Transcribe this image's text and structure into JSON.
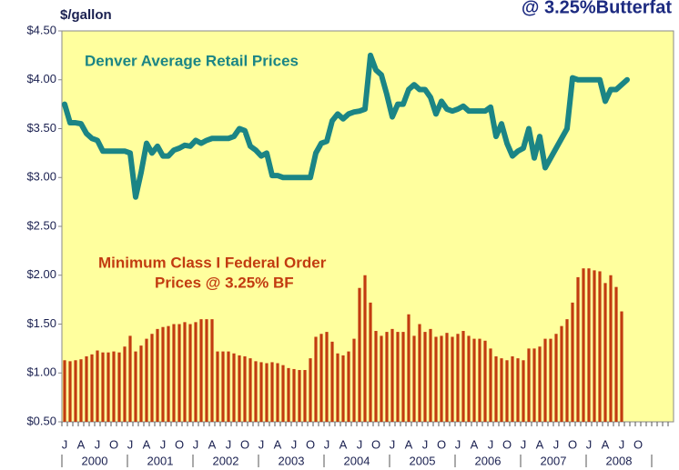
{
  "chart_data": {
    "type": "combo",
    "title": "@ 3.25%Butterfat",
    "y_axis_label": "$/gallon",
    "annotations": [
      "Denver Average Retail Prices",
      "Minimum Class I Federal Order",
      "Prices @ 3.25% BF"
    ],
    "categories": [
      "J",
      null,
      null,
      "A",
      null,
      null,
      "J",
      null,
      null,
      "O",
      null,
      null,
      "J",
      null,
      null,
      "A",
      null,
      null,
      "J",
      null,
      null,
      "O",
      null,
      null,
      "J",
      null,
      null,
      "A",
      null,
      null,
      "J",
      null,
      null,
      "O",
      null,
      null,
      "J",
      null,
      null,
      "A",
      null,
      null,
      "J",
      null,
      null,
      "O",
      null,
      null,
      "J",
      null,
      null,
      "A",
      null,
      null,
      "J",
      null,
      null,
      "O",
      null,
      null,
      "J",
      null,
      null,
      "A",
      null,
      null,
      "J",
      null,
      null,
      "O",
      null,
      null,
      "J",
      null,
      null,
      "A",
      null,
      null,
      "J",
      null,
      null,
      "O",
      null,
      null,
      "J",
      null,
      null,
      "A",
      null,
      null,
      "J",
      null,
      null,
      "O",
      null,
      null,
      "J",
      null,
      null,
      "A",
      null,
      null,
      "J",
      null,
      null,
      "O",
      null,
      null,
      null,
      null,
      null,
      null
    ],
    "year_labels": [
      "2000",
      "2001",
      "2002",
      "2003",
      "2004",
      "2005",
      "2006",
      "2007",
      "2008"
    ],
    "series": [
      {
        "name": "Minimum Class I Federal Order Prices @ 3.25% BF",
        "type": "bar",
        "color": "#c23b10",
        "values": [
          1.13,
          1.12,
          1.13,
          1.14,
          1.17,
          1.19,
          1.23,
          1.21,
          1.21,
          1.22,
          1.21,
          1.27,
          1.38,
          1.22,
          1.28,
          1.35,
          1.4,
          1.45,
          1.47,
          1.48,
          1.5,
          1.5,
          1.52,
          1.5,
          1.52,
          1.55,
          1.55,
          1.55,
          1.22,
          1.22,
          1.22,
          1.2,
          1.18,
          1.17,
          1.15,
          1.12,
          1.11,
          1.1,
          1.11,
          1.1,
          1.08,
          1.05,
          1.04,
          1.03,
          1.03,
          1.15,
          1.37,
          1.4,
          1.42,
          1.32,
          1.2,
          1.18,
          1.22,
          1.35,
          1.87,
          2.0,
          1.72,
          1.43,
          1.38,
          1.42,
          1.45,
          1.42,
          1.42,
          1.6,
          1.38,
          1.5,
          1.42,
          1.45,
          1.37,
          1.38,
          1.41,
          1.37,
          1.4,
          1.43,
          1.38,
          1.35,
          1.35,
          1.33,
          1.25,
          1.17,
          1.15,
          1.13,
          1.17,
          1.15,
          1.13,
          1.25,
          1.25,
          1.27,
          1.35,
          1.35,
          1.4,
          1.48,
          1.55,
          1.72,
          1.98,
          2.07,
          2.07,
          2.05,
          2.04,
          1.92,
          2.0,
          1.88,
          1.63,
          null,
          null,
          null,
          null,
          null,
          null,
          null,
          null,
          null
        ]
      },
      {
        "name": "Denver Average Retail Prices",
        "type": "line",
        "color": "#1b8585",
        "values": [
          3.75,
          3.56,
          3.56,
          3.55,
          3.45,
          3.4,
          3.38,
          3.27,
          3.27,
          3.27,
          3.27,
          3.27,
          3.25,
          2.8,
          3.05,
          3.35,
          3.25,
          3.32,
          3.22,
          3.22,
          3.28,
          3.3,
          3.33,
          3.32,
          3.38,
          3.35,
          3.38,
          3.4,
          3.4,
          3.4,
          3.4,
          3.42,
          3.5,
          3.48,
          3.32,
          3.28,
          3.22,
          3.25,
          3.02,
          3.02,
          3.0,
          3.0,
          3.0,
          3.0,
          3.0,
          3.0,
          3.25,
          3.35,
          3.37,
          3.58,
          3.65,
          3.6,
          3.65,
          3.67,
          3.68,
          3.7,
          4.25,
          4.1,
          4.05,
          3.85,
          3.62,
          3.75,
          3.75,
          3.9,
          3.95,
          3.9,
          3.9,
          3.82,
          3.65,
          3.78,
          3.7,
          3.68,
          3.7,
          3.73,
          3.68,
          3.68,
          3.68,
          3.68,
          3.72,
          3.42,
          3.55,
          3.35,
          3.22,
          3.27,
          3.3,
          3.5,
          3.2,
          3.42,
          3.1,
          3.2,
          3.3,
          3.4,
          3.5,
          4.02,
          4.0,
          4.0,
          4.0,
          4.0,
          4.0,
          3.78,
          3.9,
          3.9,
          3.95,
          4.0,
          null,
          null,
          null,
          null,
          null,
          null,
          null,
          null
        ]
      }
    ],
    "ylim": [
      0.5,
      4.5
    ],
    "yticks": [
      {
        "value": 0.5,
        "label": "$0.50"
      },
      {
        "value": 1,
        "label": "$1.00"
      },
      {
        "value": 1.5,
        "label": "$1.50"
      },
      {
        "value": 2,
        "label": "$2.00"
      },
      {
        "value": 2.5,
        "label": "$2.50"
      },
      {
        "value": 3,
        "label": "$3.00"
      },
      {
        "value": 3.5,
        "label": "$3.50"
      },
      {
        "value": 4,
        "label": "$4.00"
      },
      {
        "value": 4.5,
        "label": "$4.50"
      }
    ],
    "grid": false,
    "background": "#ffff9e"
  }
}
